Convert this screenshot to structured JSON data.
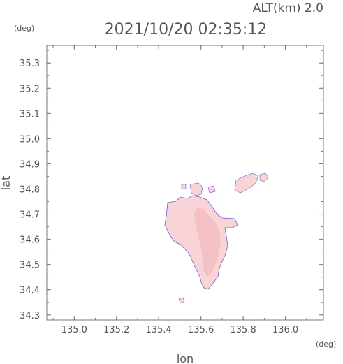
{
  "header": {
    "altitude_label": "ALT(km) 2.0",
    "timestamp": "2021/10/20 02:35:12"
  },
  "axes": {
    "x_label": "lon",
    "y_label": "lat",
    "x_unit": "(deg)",
    "y_unit": "(deg)",
    "x_range": [
      134.87,
      136.18
    ],
    "y_range": [
      34.28,
      35.37
    ],
    "x_ticks": [
      "135.0",
      "135.2",
      "135.4",
      "135.6",
      "135.8",
      "136.0"
    ],
    "y_ticks": [
      "34.3",
      "34.4",
      "34.5",
      "34.6",
      "34.7",
      "34.8",
      "34.9",
      "35.0",
      "35.1",
      "35.2",
      "35.3"
    ]
  },
  "colors": {
    "echo_fill": "#f9d4d6",
    "echo_core": "#f3c0c4",
    "echo_edge": "#6a5ad8",
    "frame": "#777777",
    "text": "#555555"
  }
}
